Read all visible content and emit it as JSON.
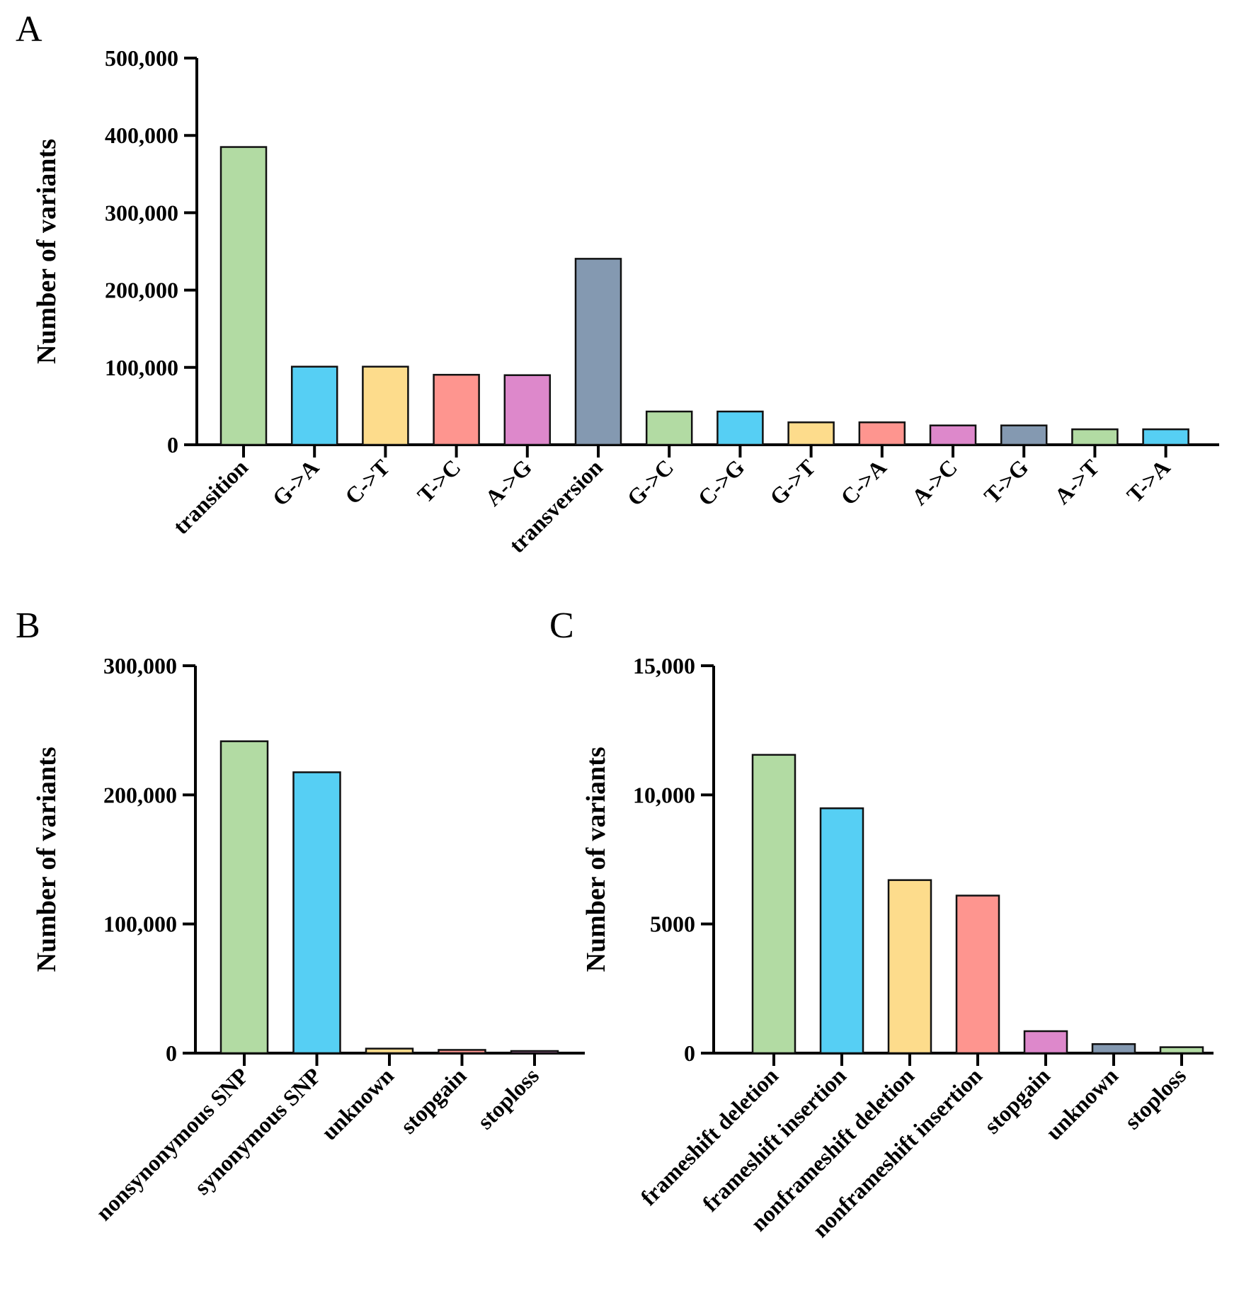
{
  "chart_data": [
    {
      "panel": "A",
      "type": "bar",
      "ylabel": "Number of variants",
      "ylim": [
        0,
        500000
      ],
      "yticks": [
        "0",
        "100,000",
        "200,000",
        "300,000",
        "400,000",
        "500,000"
      ],
      "categories": [
        "transition",
        "G->A",
        "C->T",
        "T->C",
        "A->G",
        "transversion",
        "G->C",
        "C->G",
        "G->T",
        "C->A",
        "A->C",
        "T->G",
        "A->T",
        "T->A"
      ],
      "values": [
        385000,
        101000,
        101000,
        90500,
        90000,
        240500,
        43000,
        43000,
        29000,
        29000,
        25000,
        25000,
        20000,
        20000
      ],
      "colors": [
        "#b2dba3",
        "#56cff4",
        "#fddc8c",
        "#fe958f",
        "#dd88cb",
        "#8499b1",
        "#b2dba3",
        "#56cff4",
        "#fddc8c",
        "#fe958f",
        "#dd88cb",
        "#8499b1",
        "#b2dba3",
        "#56cff4"
      ]
    },
    {
      "panel": "B",
      "type": "bar",
      "ylabel": "Number of variants",
      "ylim": [
        0,
        300000
      ],
      "yticks": [
        "0",
        "100,000",
        "200,000",
        "300,000"
      ],
      "categories": [
        "nonsynonymous SNP",
        "synonymous SNP",
        "unknown",
        "stopgain",
        "stoploss"
      ],
      "values": [
        241500,
        217500,
        3500,
        2500,
        1000
      ],
      "colors": [
        "#b2dba3",
        "#56cff4",
        "#fddc8c",
        "#fe958f",
        "#dd88cb"
      ]
    },
    {
      "panel": "C",
      "type": "bar",
      "ylabel": "Number of variants",
      "ylim": [
        0,
        15000
      ],
      "yticks": [
        "0",
        "5000",
        "10,000",
        "15,000"
      ],
      "categories": [
        "frameshift deletion",
        "frameshift insertion",
        "nonframeshift deletion",
        "nonframeshift insertion",
        "stopgain",
        "unknown",
        "stoploss"
      ],
      "values": [
        11550,
        9480,
        6700,
        6100,
        850,
        350,
        230
      ],
      "colors": [
        "#b2dba3",
        "#56cff4",
        "#fddc8c",
        "#fe958f",
        "#dd88cb",
        "#8499b1",
        "#b2dba3"
      ]
    }
  ]
}
